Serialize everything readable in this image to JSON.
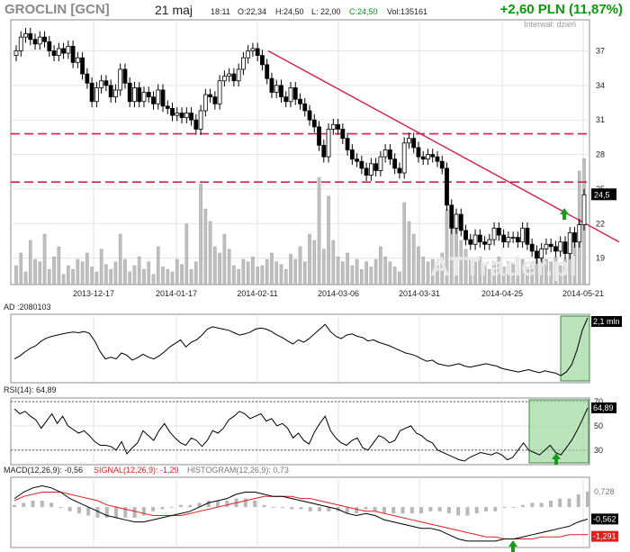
{
  "header": {
    "name": "GROCLIN [GCN]",
    "date": "21 maj",
    "time": "18:11",
    "open": "O:22,34",
    "high": "H:24,50",
    "low": "L: 22,00",
    "close": "C:24,50",
    "volume": "Vol:135161",
    "change": "+2,60 PLN (11,87%)",
    "interval": "Interwał: dzień"
  },
  "watermark": "ATTrader.pl",
  "colors": {
    "candle": "#000000",
    "volume": "#bfbfbf",
    "trendline": "#d4204a",
    "support": "#d4204a",
    "highlight": "#9fd89f",
    "arrow": "#1a9a1a",
    "macd": "#000000",
    "signal": "#e02020",
    "histogram": "#b8b8b8"
  },
  "chart_data": [
    {
      "type": "candlestick",
      "title": "GROCLIN [GCN]",
      "x_ticks": [
        "2013-12-17",
        "2014-01-17",
        "2014-02-11",
        "2014-03-06",
        "2014-03-31",
        "2014-04-25",
        "2014-05-21"
      ],
      "y_ticks": [
        19,
        22,
        25,
        28,
        31,
        34,
        37
      ],
      "ylim": [
        16.7,
        39.7
      ],
      "last_price_label": "24,5",
      "support_levels": [
        29.8,
        25.6
      ],
      "trendline": {
        "from": [
          "2014-02-11",
          37.0
        ],
        "to": [
          "2014-05-21",
          21.5
        ]
      },
      "close": [
        37.0,
        38.2,
        38.5,
        38.0,
        37.6,
        38.2,
        37.8,
        37.0,
        36.6,
        37.2,
        36.8,
        37.4,
        36.0,
        36.4,
        35.0,
        34.2,
        32.6,
        33.8,
        34.4,
        34.0,
        33.0,
        33.6,
        35.4,
        34.2,
        32.6,
        33.8,
        32.6,
        33.4,
        33.0,
        32.4,
        33.6,
        32.2,
        32.0,
        31.4,
        31.6,
        31.2,
        31.6,
        31.0,
        30.2,
        31.8,
        33.2,
        33.0,
        32.4,
        34.4,
        34.8,
        35.0,
        34.4,
        35.4,
        36.4,
        37.0,
        37.2,
        36.6,
        35.8,
        34.6,
        33.4,
        34.0,
        33.0,
        32.6,
        33.8,
        32.8,
        32.4,
        31.8,
        31.0,
        30.4,
        28.8,
        27.8,
        30.2,
        30.6,
        30.2,
        29.4,
        28.4,
        27.6,
        27.4,
        26.8,
        26.2,
        27.2,
        26.6,
        27.8,
        28.4,
        27.6,
        26.8,
        26.4,
        29.0,
        29.4,
        28.6,
        27.8,
        27.6,
        28.0,
        27.8,
        27.4,
        26.8,
        23.6,
        21.6,
        22.8,
        21.4,
        20.6,
        20.2,
        21.0,
        20.4,
        20.2,
        20.6,
        21.6,
        21.0,
        20.4,
        20.8,
        20.8,
        20.4,
        21.6,
        20.2,
        19.6,
        19.0,
        19.8,
        20.2,
        20.0,
        19.6,
        20.4,
        19.4,
        21.2,
        20.4,
        21.9,
        24.5
      ],
      "volume_scale_note": "",
      "volume": [
        15,
        25,
        10,
        35,
        20,
        18,
        40,
        12,
        22,
        30,
        8,
        15,
        12,
        20,
        18,
        25,
        14,
        10,
        28,
        16,
        12,
        18,
        40,
        20,
        10,
        15,
        22,
        12,
        18,
        8,
        30,
        14,
        12,
        10,
        20,
        16,
        48,
        12,
        18,
        80,
        60,
        50,
        30,
        25,
        40,
        28,
        15,
        12,
        20,
        18,
        22,
        14,
        15,
        20,
        25,
        18,
        16,
        12,
        24,
        20,
        30,
        18,
        40,
        35,
        85,
        28,
        70,
        35,
        22,
        18,
        25,
        15,
        20,
        12,
        18,
        14,
        20,
        30,
        22,
        18,
        14,
        10,
        65,
        50,
        40,
        30,
        22,
        18,
        20,
        15,
        25,
        60,
        55,
        45,
        35,
        28,
        20,
        18,
        22,
        15,
        12,
        18,
        22,
        14,
        18,
        16,
        12,
        20,
        14,
        18,
        22,
        25,
        20,
        18,
        22,
        15,
        20,
        25,
        40,
        90,
        100
      ]
    },
    {
      "type": "line",
      "title": "AD",
      "value_label": "AD :2080103",
      "last_label": "2,1 mln",
      "values": [
        0.3,
        0.35,
        0.42,
        0.48,
        0.52,
        0.6,
        0.65,
        0.68,
        0.7,
        0.72,
        0.74,
        0.75,
        0.74,
        0.76,
        0.73,
        0.6,
        0.42,
        0.3,
        0.33,
        0.3,
        0.4,
        0.36,
        0.28,
        0.32,
        0.38,
        0.33,
        0.3,
        0.35,
        0.42,
        0.5,
        0.56,
        0.62,
        0.5,
        0.58,
        0.62,
        0.7,
        0.8,
        0.84,
        0.82,
        0.8,
        0.78,
        0.74,
        0.7,
        0.72,
        0.75,
        0.8,
        0.82,
        0.8,
        0.76,
        0.7,
        0.66,
        0.6,
        0.55,
        0.62,
        0.58,
        0.64,
        0.72,
        0.8,
        0.88,
        0.76,
        0.68,
        0.64,
        0.7,
        0.72,
        0.68,
        0.66,
        0.6,
        0.62,
        0.58,
        0.55,
        0.52,
        0.48,
        0.44,
        0.4,
        0.38,
        0.35,
        0.3,
        0.26,
        0.28,
        0.22,
        0.2,
        0.18,
        0.2,
        0.22,
        0.18,
        0.16,
        0.18,
        0.2,
        0.22,
        0.2,
        0.18,
        0.14,
        0.12,
        0.1,
        0.08,
        0.1,
        0.12,
        0.09,
        0.07,
        0.1,
        0.08,
        0.06,
        0.02,
        0.08,
        0.2,
        0.45,
        0.78,
        0.99
      ]
    },
    {
      "type": "line",
      "title": "RSI(14)",
      "value_label": "RSI(14): 64,89",
      "last_label": "64,89",
      "y_ticks": [
        30,
        50,
        70
      ],
      "ylim": [
        18,
        73
      ],
      "values": [
        64,
        60,
        62,
        58,
        55,
        48,
        54,
        60,
        52,
        58,
        50,
        47,
        44,
        46,
        42,
        37,
        34,
        34,
        33,
        30,
        37,
        27,
        32,
        36,
        46,
        42,
        38,
        46,
        52,
        45,
        40,
        36,
        34,
        40,
        38,
        33,
        38,
        46,
        44,
        48,
        55,
        58,
        62,
        60,
        56,
        58,
        60,
        54,
        56,
        50,
        52,
        48,
        40,
        44,
        38,
        35,
        45,
        52,
        58,
        46,
        40,
        36,
        34,
        38,
        40,
        32,
        30,
        36,
        42,
        40,
        36,
        38,
        46,
        48,
        50,
        44,
        42,
        38,
        36,
        30,
        28,
        26,
        24,
        22,
        21,
        24,
        26,
        28,
        27,
        26,
        28,
        26,
        22,
        24,
        30,
        36,
        30,
        28,
        26,
        30,
        34,
        28,
        26,
        32,
        38,
        46,
        55,
        64.89
      ]
    },
    {
      "type": "line",
      "title": "MACD(12,26,9)",
      "series": [
        {
          "name": "MACD(12,26,9): -0,56",
          "last_label": "-0,562",
          "values": [
            0.4,
            0.7,
            0.9,
            1.0,
            0.9,
            0.7,
            0.4,
            0.2,
            0.0,
            -0.2,
            -0.4,
            -0.5,
            -0.6,
            -0.7,
            -0.7,
            -0.6,
            -0.5,
            -0.4,
            -0.3,
            -0.2,
            0.0,
            0.2,
            0.3,
            0.4,
            0.6,
            0.7,
            0.7,
            0.6,
            0.5,
            0.5,
            0.4,
            0.3,
            0.2,
            0.1,
            0.0,
            -0.1,
            -0.3,
            -0.4,
            -0.3,
            -0.4,
            -0.6,
            -0.7,
            -0.8,
            -0.9,
            -1.0,
            -1.0,
            -1.1,
            -1.3,
            -1.5,
            -1.6,
            -1.6,
            -1.6,
            -1.6,
            -1.5,
            -1.5,
            -1.4,
            -1.3,
            -1.2,
            -1.1,
            -1.0,
            -0.9,
            -0.7,
            -0.562
          ]
        },
        {
          "name": "SIGNAL(12,26,9): -1,29",
          "last_label": "-1,291",
          "values": [
            0.3,
            0.5,
            0.6,
            0.7,
            0.7,
            0.7,
            0.6,
            0.5,
            0.4,
            0.3,
            0.1,
            0.0,
            -0.1,
            -0.2,
            -0.3,
            -0.4,
            -0.4,
            -0.4,
            -0.4,
            -0.3,
            -0.2,
            -0.1,
            0.0,
            0.1,
            0.2,
            0.3,
            0.4,
            0.5,
            0.5,
            0.5,
            0.5,
            0.4,
            0.4,
            0.3,
            0.2,
            0.1,
            0.0,
            -0.1,
            -0.2,
            -0.2,
            -0.3,
            -0.4,
            -0.5,
            -0.6,
            -0.7,
            -0.8,
            -0.9,
            -1.0,
            -1.1,
            -1.2,
            -1.3,
            -1.4,
            -1.4,
            -1.5,
            -1.5,
            -1.5,
            -1.5,
            -1.4,
            -1.4,
            -1.4,
            -1.3,
            -1.3,
            -1.291
          ]
        },
        {
          "name": "HISTOGRAM(12,26,9): 0,73",
          "last_label": "0,728",
          "values": [
            0.1,
            0.2,
            0.3,
            0.3,
            0.2,
            0.0,
            -0.2,
            -0.3,
            -0.4,
            -0.5,
            -0.5,
            -0.5,
            -0.5,
            -0.5,
            -0.4,
            -0.2,
            -0.1,
            0.0,
            0.1,
            0.1,
            0.2,
            0.3,
            0.3,
            0.3,
            0.4,
            0.4,
            0.3,
            0.1,
            0.0,
            0.0,
            -0.1,
            -0.1,
            -0.2,
            -0.2,
            -0.2,
            -0.2,
            -0.3,
            -0.3,
            -0.1,
            -0.2,
            -0.3,
            -0.3,
            -0.3,
            -0.3,
            -0.3,
            -0.2,
            -0.2,
            -0.3,
            -0.4,
            -0.4,
            -0.3,
            -0.2,
            -0.2,
            0.0,
            0.0,
            0.1,
            0.2,
            0.2,
            0.3,
            0.4,
            0.4,
            0.6,
            0.728
          ]
        }
      ],
      "ylim": [
        -1.9,
        1.4
      ]
    }
  ]
}
